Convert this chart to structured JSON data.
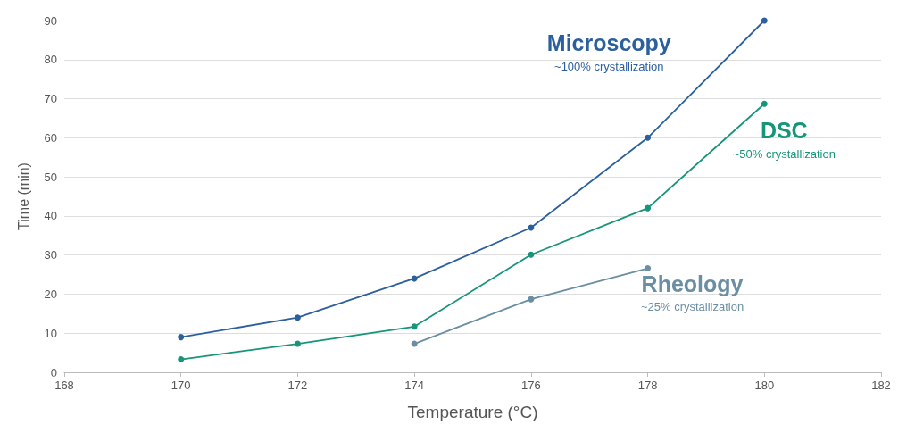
{
  "chart_data": {
    "type": "line",
    "xlabel": "Temperature (°C)",
    "ylabel": "Time (min)",
    "x": [
      170,
      172,
      174,
      176,
      178,
      180
    ],
    "series": [
      {
        "name": "Microscopy",
        "color": "#2b5f9e",
        "values": [
          9,
          14,
          24,
          37,
          60,
          90
        ]
      },
      {
        "name": "DSC",
        "color": "#17957a",
        "values": [
          3.3,
          7.3,
          11.7,
          30.1,
          42,
          68.7
        ]
      },
      {
        "name": "Rheology",
        "color": "#6a8ea3",
        "x": [
          174,
          176,
          178
        ],
        "values": [
          7.3,
          18.7,
          26.6
        ]
      }
    ],
    "annotations": [
      "~100% crystallization",
      "~50% crystallization",
      "~25% crystallization"
    ],
    "xlim": [
      168,
      182
    ],
    "xticks": [
      168,
      170,
      172,
      174,
      176,
      178,
      180,
      182
    ],
    "ylim": [
      0,
      90
    ],
    "yticks": [
      0,
      10,
      20,
      30,
      40,
      50,
      60,
      70,
      80,
      90
    ],
    "grid": "y",
    "marker": "circle",
    "line_style": "solid"
  }
}
